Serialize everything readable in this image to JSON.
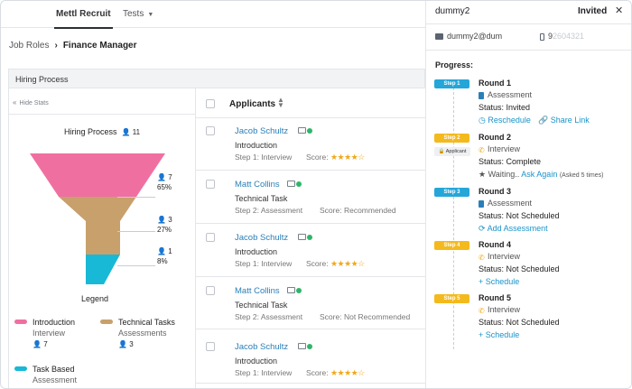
{
  "nav": {
    "active_tab": "Mettl Recruit",
    "tests_tab": "Tests"
  },
  "breadcrumb": {
    "parent": "Job Roles",
    "current": "Finance Manager"
  },
  "hiring_bar": {
    "title": "Hiring Process"
  },
  "stats_panel": {
    "hide_label": "Hide Stats",
    "funnel_title": "Hiring Process",
    "funnel_total": "11",
    "segments": [
      {
        "name": "Introduction",
        "count": "7",
        "percent": "65%",
        "color": "#f06fa1"
      },
      {
        "name": "Technical Tasks",
        "count": "3",
        "percent": "27%",
        "color": "#c8a06c"
      },
      {
        "name": "Task Based",
        "count": "1",
        "percent": "8%",
        "color": "#17b9d6"
      }
    ],
    "legend_title": "Legend",
    "legend": [
      {
        "title": "Introduction",
        "sub": "Interview",
        "count": "7"
      },
      {
        "title": "Technical Tasks",
        "sub": "Assessments",
        "count": "3"
      },
      {
        "title": "Task Based",
        "sub": "Assessment",
        "count": ""
      }
    ]
  },
  "applicants": {
    "header": "Applicants",
    "rows": [
      {
        "name": "Jacob  Schultz",
        "stage": "Introduction",
        "step": "Step 1: Interview",
        "score_label": "Score:",
        "score_text": "",
        "rating": "★★★★☆"
      },
      {
        "name": "Matt Collins",
        "stage": "Technical Task",
        "step": "Step 2: Assessment",
        "score_label": "Score:",
        "score_text": "Recommended",
        "rating": ""
      },
      {
        "name": "Jacob  Schultz",
        "stage": "Introduction",
        "step": "Step 1: Interview",
        "score_label": "Score:",
        "score_text": "",
        "rating": "★★★★☆"
      },
      {
        "name": "Matt Collins",
        "stage": "Technical Task",
        "step": "Step 2: Assessment",
        "score_label": "Score:",
        "score_text": "Not Recommended",
        "rating": ""
      },
      {
        "name": "Jacob  Schultz",
        "stage": "Introduction",
        "step": "Step 1: Interview",
        "score_label": "Score:",
        "score_text": "",
        "rating": "★★★★☆"
      }
    ]
  },
  "detail": {
    "name": "dummy2",
    "status": "Invited",
    "close": "✕",
    "email": "dummy2@dum",
    "phone_visible": "9",
    "phone_masked": "2604321",
    "progress_label": "Progress:",
    "steps": [
      {
        "pill": "Step 1",
        "tag": "",
        "round": "Round 1",
        "type": "Assessment",
        "status": "Status: Invited",
        "action1": "Reschedule",
        "action2": "Share Link"
      },
      {
        "pill": "Step 2",
        "tag": "Applicant",
        "round": "Round 2",
        "type": "Interview",
        "status": "Status: Complete",
        "waiting": "Waiting..",
        "ask": "Ask Again",
        "times": "(Asked 5 times)"
      },
      {
        "pill": "Step 3",
        "tag": "",
        "round": "Round 3",
        "type": "Assessment",
        "status": "Status: Not Scheduled",
        "action1": "Add Assessment"
      },
      {
        "pill": "Step 4",
        "tag": "",
        "round": "Round 4",
        "type": "Interview",
        "status": "Status: Not Scheduled",
        "action1": "Schedule"
      },
      {
        "pill": "Step 5",
        "tag": "",
        "round": "Round 5",
        "type": "Interview",
        "status": "Status: Not Scheduled",
        "action1": "Schedule"
      }
    ]
  }
}
